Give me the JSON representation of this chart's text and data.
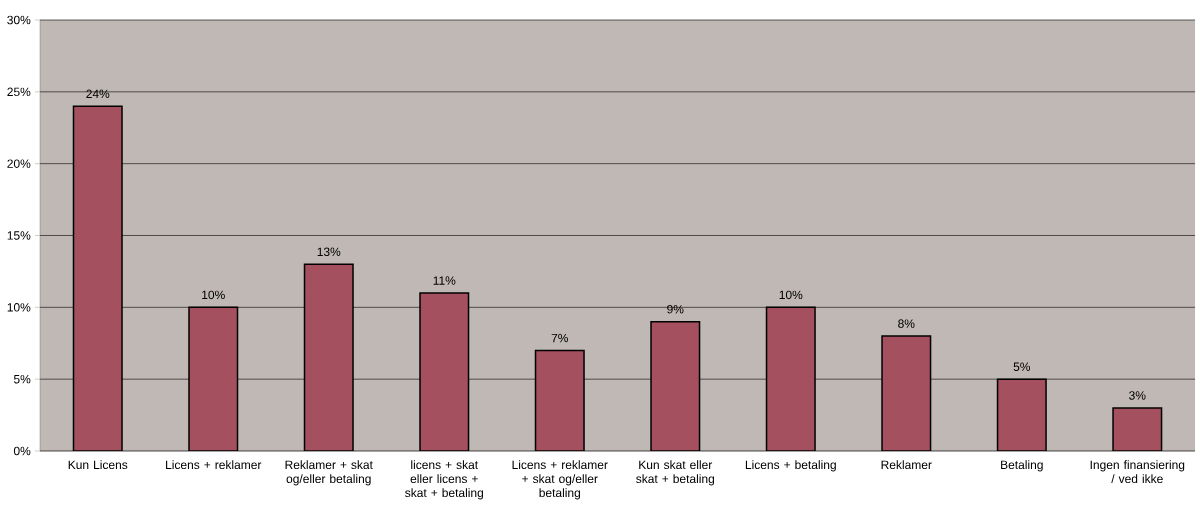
{
  "chart_data": {
    "type": "bar",
    "categories": [
      "Kun Licens",
      "Licens + reklamer",
      "Reklamer + skat og/eller betaling",
      "licens + skat eller licens + skat + betaling",
      "Licens + reklamer + skat og/eller betaling",
      "Kun skat eller skat + betaling",
      "Licens + betaling",
      "Reklamer",
      "Betaling",
      "Ingen finansiering / ved ikke"
    ],
    "values": [
      24,
      10,
      13,
      11,
      7,
      9,
      10,
      8,
      5,
      3
    ],
    "value_labels": [
      "24%",
      "10%",
      "13%",
      "11%",
      "7%",
      "9%",
      "10%",
      "8%",
      "5%",
      "3%"
    ],
    "color": "#a5505f",
    "ylim": [
      0,
      30
    ],
    "yticks": [
      {
        "value": 0,
        "label": "0%"
      },
      {
        "value": 5,
        "label": "5%"
      },
      {
        "value": 10,
        "label": "10%"
      },
      {
        "value": 15,
        "label": "15%"
      },
      {
        "value": 20,
        "label": "20%"
      },
      {
        "value": 25,
        "label": "25%"
      },
      {
        "value": 30,
        "label": "30%"
      }
    ],
    "grid": "y"
  }
}
